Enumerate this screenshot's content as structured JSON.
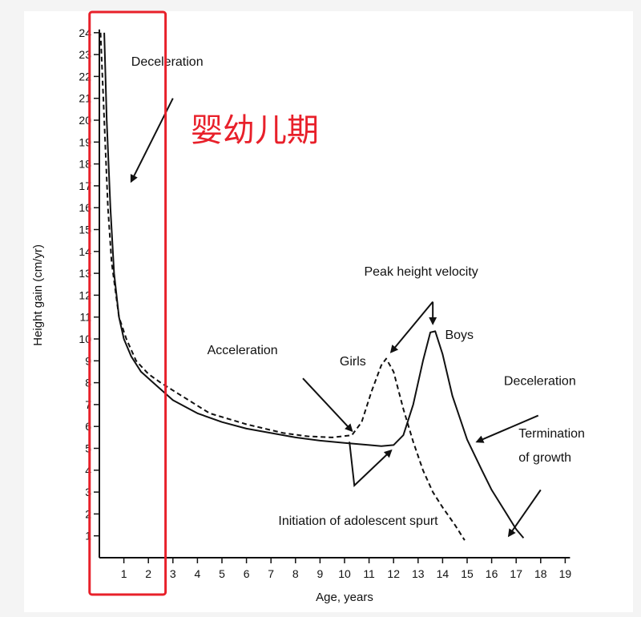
{
  "chart_data": {
    "type": "line",
    "title": "",
    "xlabel": "Age, years",
    "ylabel": "Height gain (cm/yr)",
    "xlim": [
      0,
      19
    ],
    "ylim": [
      0,
      24
    ],
    "x_ticks": [
      1,
      2,
      3,
      4,
      5,
      6,
      7,
      8,
      9,
      10,
      11,
      12,
      13,
      14,
      15,
      16,
      17,
      18,
      19
    ],
    "y_ticks": [
      1,
      2,
      3,
      4,
      5,
      6,
      7,
      8,
      9,
      10,
      11,
      12,
      13,
      14,
      15,
      16,
      17,
      18,
      19,
      20,
      21,
      22,
      23,
      24
    ],
    "grid": false,
    "legend": "none",
    "series": [
      {
        "name": "Boys",
        "style": "solid",
        "color": "#111111",
        "points": [
          [
            0.2,
            24
          ],
          [
            0.3,
            20
          ],
          [
            0.45,
            16
          ],
          [
            0.6,
            13
          ],
          [
            0.8,
            11
          ],
          [
            1.0,
            10
          ],
          [
            1.3,
            9.2
          ],
          [
            1.7,
            8.5
          ],
          [
            2.2,
            8
          ],
          [
            3,
            7.2
          ],
          [
            4,
            6.6
          ],
          [
            5,
            6.2
          ],
          [
            6,
            5.9
          ],
          [
            7,
            5.7
          ],
          [
            8,
            5.5
          ],
          [
            9,
            5.35
          ],
          [
            10,
            5.25
          ],
          [
            11,
            5.15
          ],
          [
            11.5,
            5.1
          ],
          [
            12,
            5.15
          ],
          [
            12.4,
            5.6
          ],
          [
            12.8,
            7
          ],
          [
            13.2,
            9
          ],
          [
            13.5,
            10.3
          ],
          [
            13.7,
            10.35
          ],
          [
            14,
            9.3
          ],
          [
            14.4,
            7.4
          ],
          [
            15,
            5.4
          ],
          [
            15.6,
            4
          ],
          [
            16,
            3.1
          ],
          [
            16.5,
            2.2
          ],
          [
            17,
            1.3
          ],
          [
            17.3,
            0.9
          ]
        ]
      },
      {
        "name": "Girls",
        "style": "dashed",
        "color": "#111111",
        "points": [
          [
            0.05,
            24
          ],
          [
            0.2,
            20
          ],
          [
            0.35,
            16
          ],
          [
            0.5,
            13.5
          ],
          [
            0.8,
            11
          ],
          [
            1.1,
            10
          ],
          [
            1.5,
            9
          ],
          [
            2,
            8.4
          ],
          [
            2.5,
            8
          ],
          [
            3.5,
            7.3
          ],
          [
            4.5,
            6.6
          ],
          [
            6,
            6.1
          ],
          [
            7.5,
            5.7
          ],
          [
            8.5,
            5.55
          ],
          [
            9.5,
            5.5
          ],
          [
            10.3,
            5.6
          ],
          [
            10.7,
            6.2
          ],
          [
            11.1,
            7.6
          ],
          [
            11.5,
            8.8
          ],
          [
            11.7,
            9.1
          ],
          [
            12,
            8.5
          ],
          [
            12.4,
            6.8
          ],
          [
            12.8,
            5.3
          ],
          [
            13.2,
            4
          ],
          [
            13.6,
            3
          ],
          [
            14,
            2.3
          ],
          [
            14.5,
            1.5
          ],
          [
            14.9,
            0.8
          ]
        ]
      }
    ],
    "annotations": [
      {
        "text": "Deceleration",
        "x": 1.3,
        "y": 22.5
      },
      {
        "text": "Acceleration",
        "x": 4.4,
        "y": 9.3
      },
      {
        "text": "Girls",
        "x": 9.8,
        "y": 8.8
      },
      {
        "text": "Peak height velocity",
        "x": 10.8,
        "y": 12.9
      },
      {
        "text": "Boys",
        "x": 14.1,
        "y": 10.0
      },
      {
        "text": "Deceleration",
        "x": 16.5,
        "y": 7.9
      },
      {
        "text": "Termination",
        "x": 17.1,
        "y": 5.5
      },
      {
        "text": "of growth",
        "x": 17.1,
        "y": 4.4
      },
      {
        "text": "Initiation of adolescent spurt",
        "x": 7.3,
        "y": 1.5
      }
    ],
    "arrows": [
      {
        "from": [
          3.0,
          21.0
        ],
        "to": [
          1.3,
          17.2
        ]
      },
      {
        "from": [
          8.3,
          8.2
        ],
        "to": [
          10.3,
          5.8
        ]
      },
      {
        "from": [
          13.6,
          11.7
        ],
        "to": [
          11.9,
          9.4
        ]
      },
      {
        "from": [
          13.6,
          11.7
        ],
        "to": [
          13.6,
          10.7
        ]
      },
      {
        "from": [
          17.9,
          6.5
        ],
        "to": [
          15.4,
          5.3
        ]
      },
      {
        "from": [
          18.0,
          3.1
        ],
        "to": [
          16.7,
          1.0
        ]
      }
    ],
    "overlay": {
      "label": "婴幼儿期",
      "color": "#e8202a",
      "x_range": [
        -0.4,
        2.7
      ]
    }
  }
}
